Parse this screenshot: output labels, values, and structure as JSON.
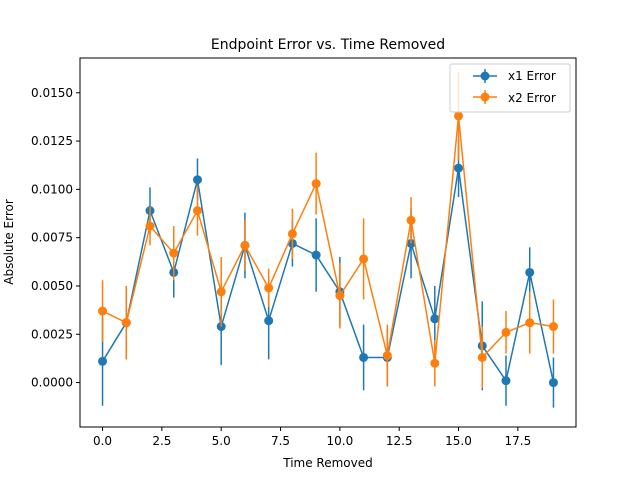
{
  "chart_data": {
    "type": "line",
    "title": "Endpoint Error vs. Time Removed",
    "xlabel": "Time Removed",
    "ylabel": "Absolute Error",
    "xlim": [
      -0.95,
      19.95
    ],
    "ylim": [
      -0.0023,
      0.0168
    ],
    "xticks": [
      0,
      2.5,
      5,
      7.5,
      10,
      12.5,
      15,
      17.5
    ],
    "xtick_labels": [
      "0.0",
      "2.5",
      "5.0",
      "7.5",
      "10.0",
      "12.5",
      "15.0",
      "17.5"
    ],
    "yticks": [
      0,
      0.0025,
      0.005,
      0.0075,
      0.01,
      0.0125,
      0.015
    ],
    "ytick_labels": [
      "0.0000",
      "0.0025",
      "0.0050",
      "0.0075",
      "0.0100",
      "0.0125",
      "0.0150"
    ],
    "grid": false,
    "legend_position": "top-right",
    "x": [
      0,
      1,
      2,
      3,
      4,
      5,
      6,
      7,
      8,
      9,
      10,
      11,
      12,
      13,
      14,
      15,
      16,
      17,
      18,
      19
    ],
    "series": [
      {
        "name": "x1 Error",
        "color": "#1f77b4",
        "values": [
          0.0011,
          0.0031,
          0.0089,
          0.0057,
          0.0105,
          0.0029,
          0.0071,
          0.0032,
          0.0072,
          0.0066,
          0.0047,
          0.0013,
          0.0013,
          0.0072,
          0.0033,
          0.0111,
          0.0019,
          0.0001,
          0.0057,
          0.0
        ],
        "error": [
          0.0023,
          0.0019,
          0.0012,
          0.0013,
          0.0011,
          0.002,
          0.0017,
          0.002,
          0.0012,
          0.0019,
          0.0018,
          0.0017,
          0.0015,
          0.0018,
          0.0017,
          0.0015,
          0.0023,
          0.0013,
          0.0013,
          0.0013
        ]
      },
      {
        "name": "x2 Error",
        "color": "#ff7f0e",
        "values": [
          0.0037,
          0.0031,
          0.0081,
          0.0067,
          0.0089,
          0.0047,
          0.0071,
          0.0049,
          0.0077,
          0.0103,
          0.0045,
          0.0064,
          0.0014,
          0.0084,
          0.001,
          0.0138,
          0.0013,
          0.0026,
          0.0031,
          0.0029
        ],
        "error": [
          0.0016,
          0.0019,
          0.001,
          0.0014,
          0.0013,
          0.0018,
          0.0013,
          0.001,
          0.0013,
          0.0016,
          0.0017,
          0.0021,
          0.0016,
          0.0012,
          0.0012,
          0.0023,
          0.0016,
          0.0011,
          0.0016,
          0.0014
        ]
      }
    ]
  }
}
